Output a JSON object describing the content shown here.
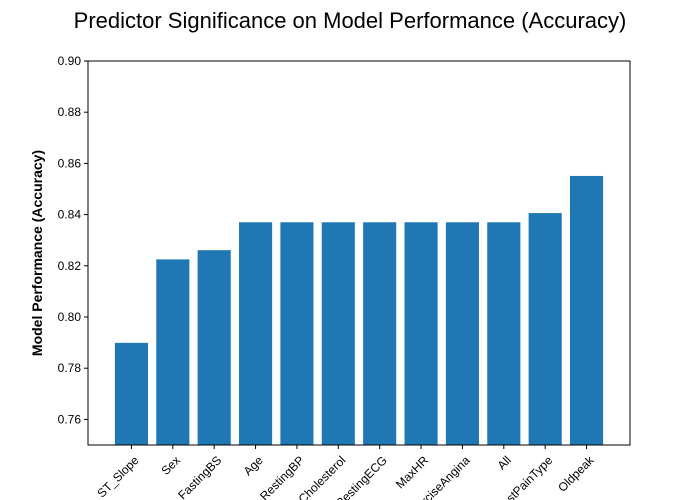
{
  "chart_data": {
    "type": "bar",
    "title": "Predictor Significance on Model Performance (Accuracy)",
    "xlabel": "",
    "ylabel": "Model Performance (Accuracy)",
    "ylim": [
      0.75,
      0.9
    ],
    "yticks": [
      "0.76",
      "0.78",
      "0.80",
      "0.82",
      "0.84",
      "0.86",
      "0.88",
      "0.90"
    ],
    "categories": [
      "ST_Slope",
      "Sex",
      "FastingBS",
      "Age",
      "RestingBP",
      "Cholesterol",
      "RestingECG",
      "MaxHR",
      "ExerciseAngina",
      "All",
      "ChestPainType",
      "Oldpeak"
    ],
    "values": [
      0.7899,
      0.8225,
      0.8261,
      0.837,
      0.837,
      0.837,
      0.837,
      0.837,
      0.837,
      0.837,
      0.8406,
      0.8551
    ],
    "bar_color": "#1f77b4",
    "grid": false,
    "legend": "none"
  }
}
